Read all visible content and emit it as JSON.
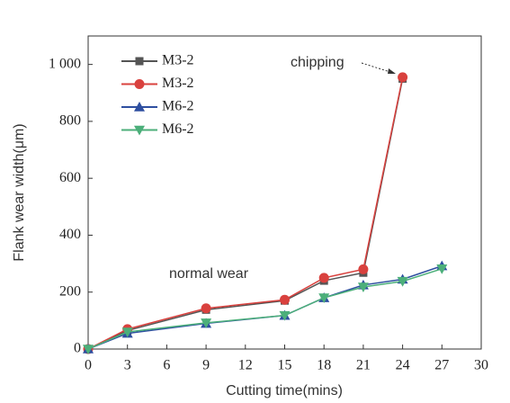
{
  "chart_data": {
    "type": "line",
    "x_label": "Cutting time(mins)",
    "y_label": "Flank wear width(μm)",
    "x": [
      0,
      3,
      9,
      15,
      18,
      21,
      24,
      27
    ],
    "series": [
      {
        "name": "M3-2",
        "color": "#555555",
        "marker": "square",
        "values": [
          0,
          65,
          138,
          170,
          240,
          268,
          950,
          null
        ]
      },
      {
        "name": "M3-2",
        "color": "#d9413e",
        "marker": "circle",
        "values": [
          0,
          70,
          143,
          173,
          250,
          280,
          955,
          null
        ]
      },
      {
        "name": "M6-2",
        "color": "#2e4fa0",
        "marker": "triangle-up",
        "values": [
          0,
          55,
          90,
          118,
          180,
          225,
          245,
          292
        ]
      },
      {
        "name": "M6-2",
        "color": "#4caf7a",
        "marker": "triangle-down",
        "values": [
          0,
          60,
          92,
          118,
          180,
          218,
          238,
          282
        ]
      }
    ],
    "xlim": [
      0,
      30
    ],
    "xticks": [
      0,
      3,
      6,
      9,
      12,
      15,
      18,
      21,
      24,
      27,
      30
    ],
    "ylim": [
      0,
      1100
    ],
    "yticks": [
      0,
      200,
      400,
      600,
      800,
      {
        "value": 1000,
        "label": "1 000"
      }
    ],
    "annotations": [
      "chipping",
      "normal wear"
    ]
  }
}
